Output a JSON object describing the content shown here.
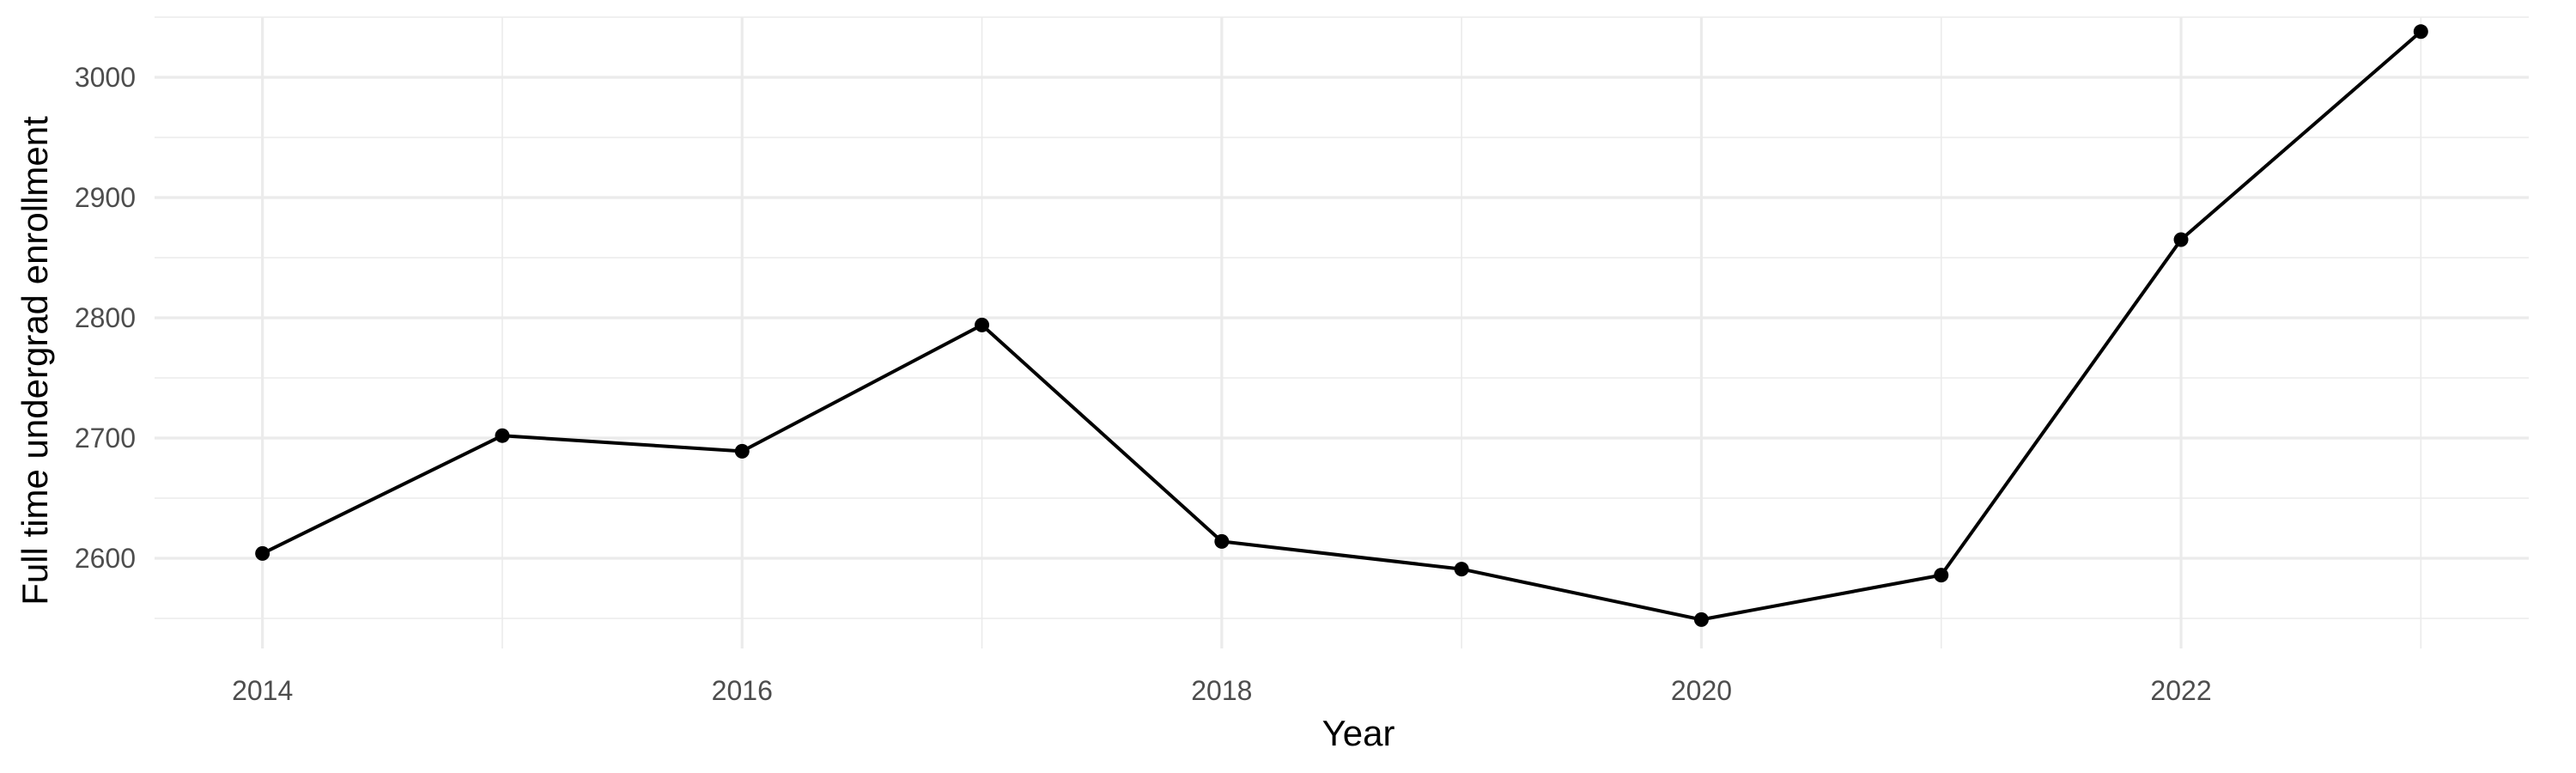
{
  "chart_data": {
    "type": "line",
    "title": "",
    "xlabel": "Year",
    "ylabel": "Full time undergrad enrollment",
    "x": [
      2014,
      2015,
      2016,
      2017,
      2018,
      2019,
      2020,
      2021,
      2022,
      2023
    ],
    "series": [
      {
        "values": [
          2604,
          2702,
          2689,
          2794,
          2614,
          2591,
          2549,
          2586,
          2865,
          3038
        ]
      }
    ],
    "xlim": [
      2013.55,
      2023.45
    ],
    "ylim": [
      2525,
      3050
    ],
    "x_ticks": [
      2014,
      2016,
      2018,
      2020,
      2022
    ],
    "y_ticks": [
      2600,
      2700,
      2800,
      2900,
      3000
    ],
    "x_tick_labels": [
      "2014",
      "2016",
      "2018",
      "2020",
      "2022"
    ],
    "y_tick_labels": [
      "2600",
      "2700",
      "2800",
      "2900",
      "3000"
    ],
    "grid": true,
    "legend": "none",
    "colors": {
      "line": "#000000",
      "point": "#000000",
      "grid": "#ebebeb",
      "tick_text": "#4d4d4d",
      "background": "#ffffff"
    }
  }
}
